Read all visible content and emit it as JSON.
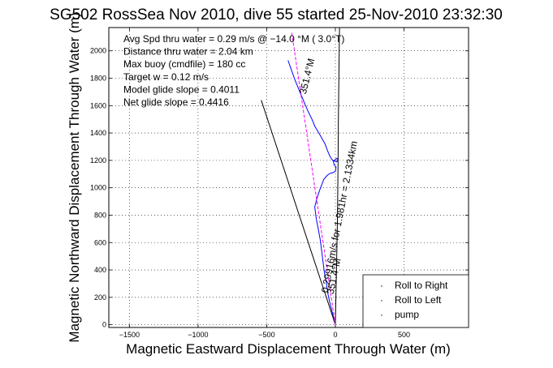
{
  "chart_data": {
    "type": "line",
    "title": "SG502 RossSea Nov 2010, dive 55 started 25-Nov-2010 23:32:30",
    "xlabel": "Magnetic Eastward Displacement Through Water (m)",
    "ylabel": "Magnetic Northward Displacement Through Water (m)",
    "xlim": [
      -1650,
      970
    ],
    "ylim": [
      -20,
      2170
    ],
    "xticks": [
      -1500,
      -1000,
      -500,
      0,
      500
    ],
    "yticks": [
      0,
      200,
      400,
      600,
      800,
      1000,
      1200,
      1400,
      1600,
      1800,
      2000
    ],
    "grid": true,
    "legend_position": "bottom-right",
    "info_lines": [
      "Avg Spd thru water =  0.29 m/s @ −14.0    °M (  3.0°T)",
      "Distance thru water = 2.04 km",
      "Max buoy (cmdfile) = 180 cc",
      "Target w = 0.12 m/s",
      "Model glide slope = 0.4011",
      "Net glide slope = 0.4416"
    ],
    "annotations": [
      {
        "text": "351.4°M",
        "x": -215,
        "y": 1680,
        "angle": -76
      },
      {
        "text": "0.29916m/s for 1.981hr = 2.1334km",
        "x": -55,
        "y": 230,
        "angle": -79
      },
      {
        "text": "351.4°M",
        "x": -15,
        "y": 220,
        "angle": -78
      }
    ],
    "series": [
      {
        "name": "",
        "color": "#0000ff",
        "x": [
          0,
          -10,
          -15,
          -25,
          -40,
          -55,
          -65,
          -80,
          -90,
          -100,
          -110,
          -125,
          -140,
          -150,
          -135,
          -115,
          -100,
          -85,
          -60,
          -40,
          -20,
          0,
          5,
          -10,
          -15,
          10,
          20,
          10,
          -20,
          -40,
          -60,
          -75,
          -120,
          -150,
          -170,
          -200,
          -225,
          -250,
          -275,
          -295,
          -320,
          -345
        ],
        "y": [
          0,
          30,
          60,
          100,
          160,
          230,
          300,
          380,
          460,
          540,
          620,
          700,
          780,
          860,
          920,
          980,
          1020,
          1060,
          1090,
          1105,
          1110,
          1120,
          1150,
          1170,
          1195,
          1215,
          1205,
          1190,
          1200,
          1230,
          1280,
          1320,
          1400,
          1450,
          1500,
          1560,
          1620,
          1680,
          1740,
          1790,
          1860,
          1930
        ]
      },
      {
        "name": "",
        "color": "#000000",
        "x": [
          0,
          5,
          10,
          15,
          18,
          20,
          22,
          25,
          28,
          30
        ],
        "y": [
          0,
          250,
          500,
          750,
          1000,
          1250,
          1500,
          1750,
          2000,
          2170
        ]
      },
      {
        "name": "",
        "color": "#000000",
        "x": [
          0,
          -540
        ],
        "y": [
          0,
          1640
        ]
      },
      {
        "name": "",
        "color": "#ff00ff",
        "dashed": true,
        "x": [
          0,
          -318
        ],
        "y": [
          0,
          2135
        ]
      }
    ],
    "legend": [
      {
        "marker": "·",
        "color": "#00aa00",
        "label": "Roll to Right"
      },
      {
        "marker": "·",
        "color": "#ff0000",
        "label": "Roll to Left"
      },
      {
        "marker": "·",
        "color": "#000000",
        "label": "pump"
      }
    ]
  }
}
